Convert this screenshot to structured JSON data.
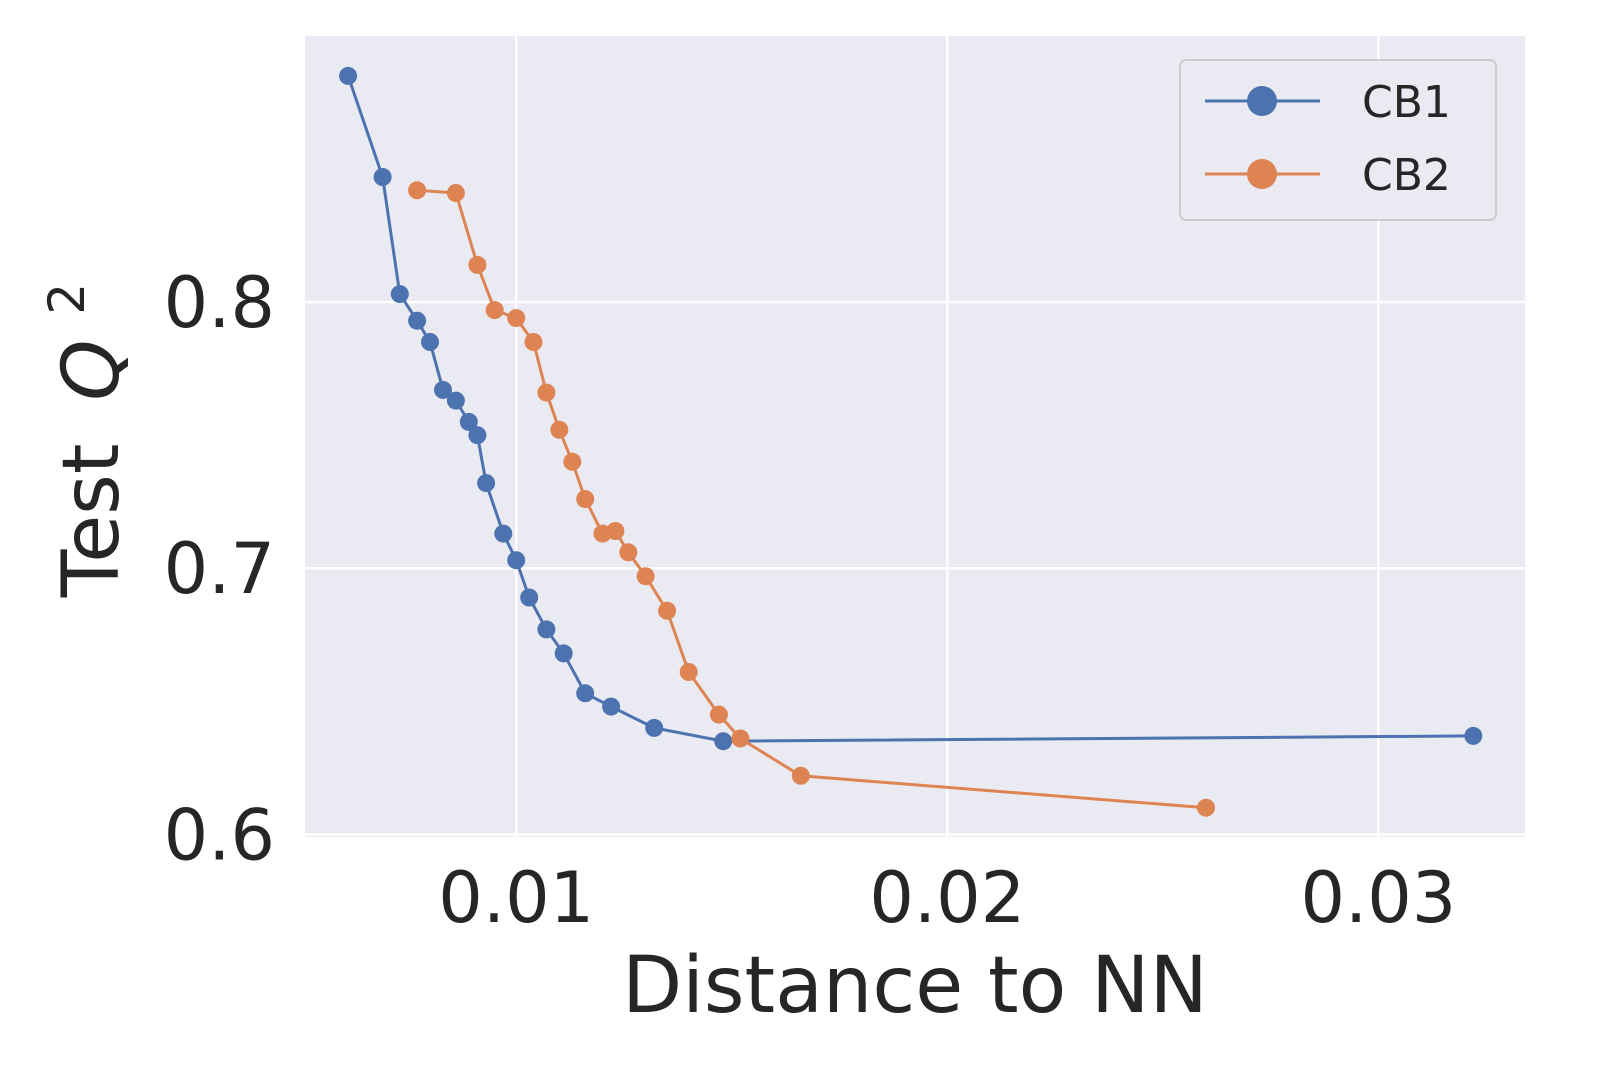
{
  "chart_data": {
    "type": "line",
    "title": "",
    "xlabel": "Distance to NN",
    "ylabel": "Test",
    "ylabel_symbol": "Q",
    "ylabel_exponent": "2",
    "xlim": [
      0.0051,
      0.0334
    ],
    "ylim": [
      0.599,
      0.9
    ],
    "xticks": [
      0.01,
      0.02,
      0.03
    ],
    "xtick_labels": [
      "0.01",
      "0.02",
      "0.03"
    ],
    "yticks": [
      0.6,
      0.7,
      0.8
    ],
    "ytick_labels": [
      "0.6",
      "0.7",
      "0.8"
    ],
    "grid": true,
    "legend_position": "top-right",
    "series": [
      {
        "name": "CB1",
        "color": "#4c72b0",
        "x": [
          0.0061,
          0.0069,
          0.0073,
          0.0077,
          0.008,
          0.0083,
          0.0086,
          0.0089,
          0.0091,
          0.0093,
          0.0097,
          0.01,
          0.0103,
          0.0107,
          0.0111,
          0.0116,
          0.0122,
          0.0132,
          0.0148,
          0.0322
        ],
        "y": [
          0.885,
          0.847,
          0.803,
          0.793,
          0.785,
          0.767,
          0.763,
          0.755,
          0.75,
          0.732,
          0.713,
          0.703,
          0.689,
          0.677,
          0.668,
          0.653,
          0.648,
          0.64,
          0.635,
          0.637
        ]
      },
      {
        "name": "CB2",
        "color": "#dd8452",
        "x": [
          0.0077,
          0.0086,
          0.0091,
          0.0095,
          0.01,
          0.0104,
          0.0107,
          0.011,
          0.0113,
          0.0116,
          0.012,
          0.0123,
          0.0126,
          0.013,
          0.0135,
          0.014,
          0.0147,
          0.0152,
          0.0166,
          0.026
        ],
        "y": [
          0.842,
          0.841,
          0.814,
          0.797,
          0.794,
          0.785,
          0.766,
          0.752,
          0.74,
          0.726,
          0.713,
          0.714,
          0.706,
          0.697,
          0.684,
          0.661,
          0.645,
          0.636,
          0.622,
          0.61
        ]
      }
    ]
  }
}
